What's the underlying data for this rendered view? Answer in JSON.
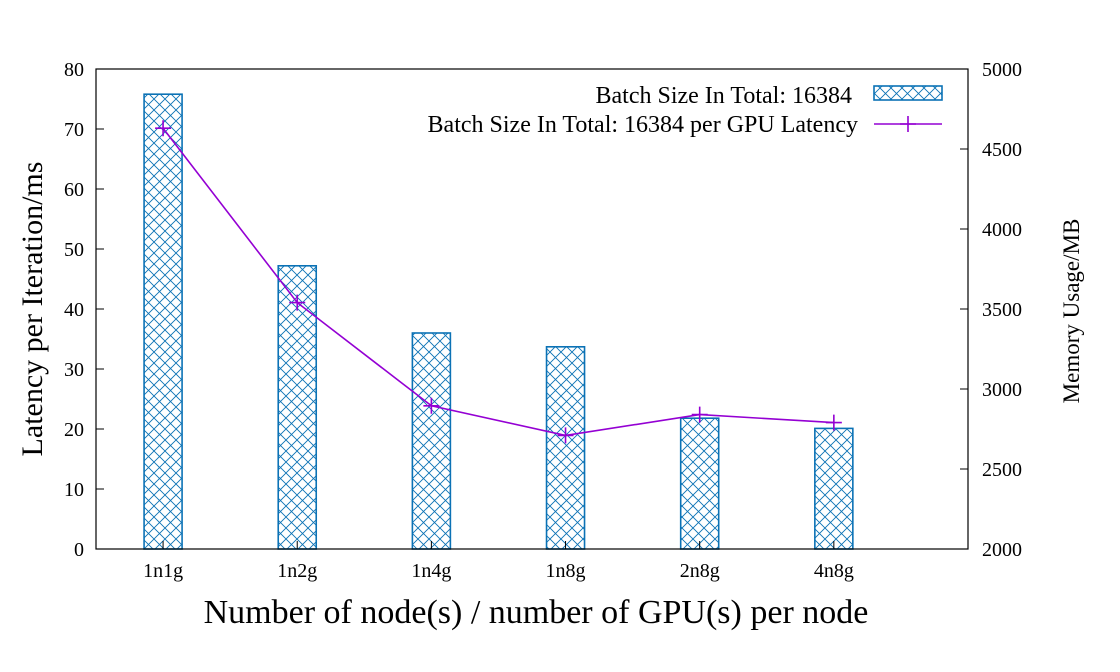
{
  "chart_data": {
    "type": "bar",
    "xlabel": "Number of node(s) / number of GPU(s) per node",
    "ylabel": "Latency per Iteration/ms",
    "y2label": "Memory Usage/MB",
    "categories": [
      "1n1g",
      "1n2g",
      "1n4g",
      "1n8g",
      "2n8g",
      "4n8g"
    ],
    "ylim": [
      0,
      80
    ],
    "yticks": [
      "0",
      "10",
      "20",
      "30",
      "40",
      "50",
      "60",
      "70",
      "80"
    ],
    "y2lim": [
      2000,
      5000
    ],
    "y2ticks": [
      "2000",
      "2500",
      "3000",
      "3500",
      "4000",
      "4500",
      "5000"
    ],
    "series": [
      {
        "name": "Batch Size In Total: 16384",
        "type": "bar",
        "axis": "left",
        "values": [
          75.8,
          47.2,
          36.0,
          33.7,
          21.8,
          20.1
        ],
        "color": "#0b72b5",
        "pattern": "crosshatch"
      },
      {
        "name": "Batch Size In Total: 16384 per GPU Latency",
        "type": "line",
        "axis": "right",
        "values": [
          4630,
          3540,
          2895,
          2710,
          2840,
          2790
        ],
        "color": "#9400d3",
        "marker": "plus"
      }
    ],
    "legend_position": "top-right",
    "grid": false
  }
}
